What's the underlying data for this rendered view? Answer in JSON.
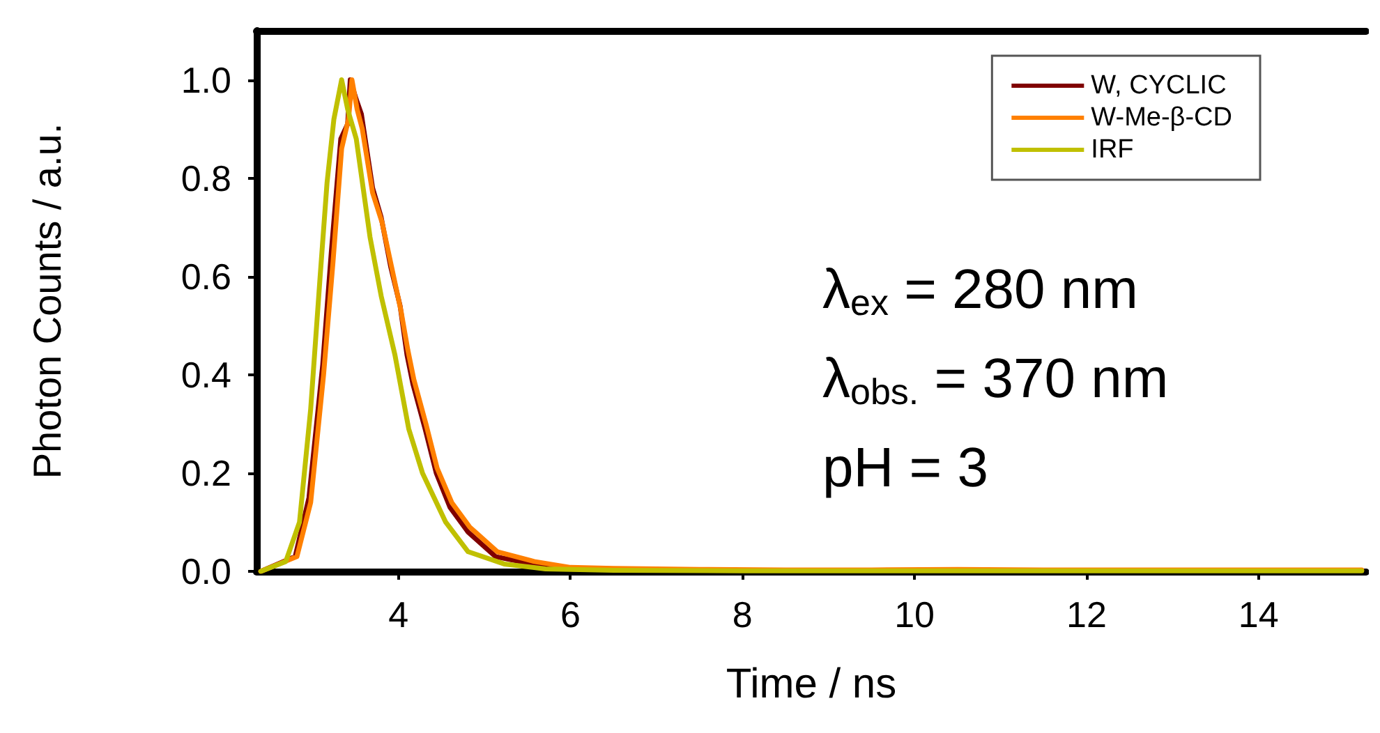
{
  "chart_data": {
    "type": "line",
    "xlabel": "Time / ns",
    "ylabel": "Photon Counts / a.u.",
    "xlim": [
      2.35,
      15.25
    ],
    "ylim": [
      0,
      1.1
    ],
    "xticks": [
      4,
      6,
      8,
      10,
      12,
      14
    ],
    "yticks": [
      {
        "value": 0,
        "label": "0.0"
      },
      {
        "value": 0.2,
        "label": "0.2"
      },
      {
        "value": 0.4,
        "label": "0.4"
      },
      {
        "value": 0.6,
        "label": "0.6"
      },
      {
        "value": 0.8,
        "label": "0.8"
      },
      {
        "value": 1.0,
        "label": "1.0"
      }
    ],
    "grid": false,
    "legend": "top right",
    "marker": "none",
    "line_style": "solid",
    "annotations": [
      "λ$_{ex}$ = 280 nm",
      "λ$_{obs.}$ = 370 nm",
      "pH = 3"
    ],
    "series": [
      {
        "name": "W, CYCLIC",
        "color": "#800000",
        "x": [
          2.4,
          2.8,
          2.96,
          3.12,
          3.22,
          3.33,
          3.41,
          3.44,
          3.51,
          3.57,
          3.7,
          3.8,
          3.91,
          4.02,
          4.1,
          4.17,
          4.31,
          4.44,
          4.6,
          4.81,
          5.13,
          5.55,
          5.97,
          6.5
        ],
        "values": [
          0,
          0.03,
          0.15,
          0.42,
          0.65,
          0.88,
          0.91,
          1.0,
          0.96,
          0.93,
          0.78,
          0.72,
          0.62,
          0.54,
          0.44,
          0.38,
          0.29,
          0.2,
          0.13,
          0.08,
          0.03,
          0.015,
          0.005,
          0.004
        ]
      },
      {
        "name": "W-Me-β-CD",
        "color": "#ff8000",
        "x": [
          2.4,
          2.82,
          2.98,
          3.13,
          3.24,
          3.34,
          3.42,
          3.46,
          3.52,
          3.58,
          3.7,
          3.81,
          3.92,
          4.03,
          4.11,
          4.18,
          4.32,
          4.45,
          4.62,
          4.83,
          5.15,
          5.58,
          6.0,
          6.5,
          7.5,
          8.5,
          9.5,
          10.5,
          11.5,
          12.5,
          13.5,
          14.5,
          15.2
        ],
        "values": [
          0,
          0.03,
          0.14,
          0.4,
          0.63,
          0.86,
          0.92,
          1.0,
          0.94,
          0.9,
          0.77,
          0.71,
          0.62,
          0.53,
          0.45,
          0.39,
          0.3,
          0.21,
          0.14,
          0.09,
          0.04,
          0.02,
          0.008,
          0.006,
          0.004,
          0.003,
          0.003,
          0.004,
          0.003,
          0.003,
          0.003,
          0.003,
          0.003
        ]
      },
      {
        "name": "IRF",
        "color": "#c0c000",
        "x": [
          2.4,
          2.69,
          2.85,
          2.98,
          3.09,
          3.17,
          3.25,
          3.34,
          3.41,
          3.51,
          3.67,
          3.8,
          3.96,
          4.12,
          4.28,
          4.55,
          4.81,
          5.23,
          5.71,
          6.5,
          8,
          10,
          12,
          14,
          15.2
        ],
        "values": [
          0,
          0.02,
          0.1,
          0.33,
          0.6,
          0.79,
          0.92,
          1.0,
          0.94,
          0.88,
          0.68,
          0.56,
          0.44,
          0.29,
          0.2,
          0.1,
          0.04,
          0.015,
          0.005,
          0.002,
          0.001,
          0.001,
          0.001,
          0.001,
          0.001
        ]
      }
    ]
  }
}
